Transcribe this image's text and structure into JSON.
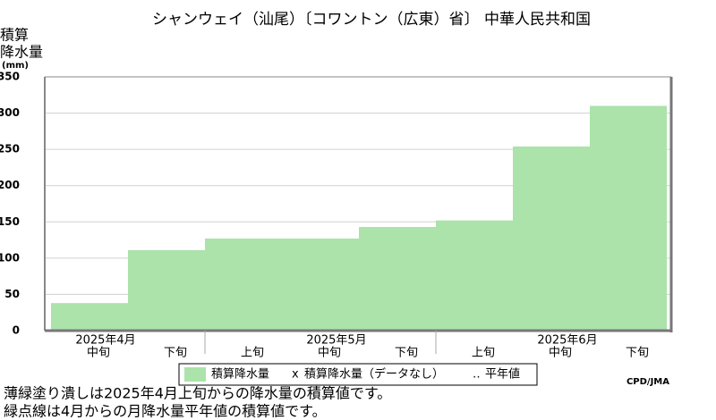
{
  "chart_data": {
    "type": "step-bar",
    "title": "シャンウェイ（汕尾）〔コワントン（広東）省〕 中華人民共和国",
    "y_label": [
      "積算",
      "降水量",
      "(mm)"
    ],
    "categories": [
      "中旬",
      "下旬",
      "上旬",
      "中旬",
      "下旬",
      "上旬",
      "中旬",
      "下旬"
    ],
    "month_labels": [
      "2025年4月",
      "2025年5月",
      "2025年6月"
    ],
    "series": [
      {
        "name": "積算降水量",
        "color": "#abe3aa",
        "values": [
          38,
          111,
          127,
          127,
          143,
          152,
          254,
          310
        ]
      }
    ],
    "legend_extra": [
      {
        "marker": "x",
        "name": "積算降水量（データなし）"
      },
      {
        "marker": "‥",
        "name": "平年値"
      }
    ],
    "ylim": [
      0,
      350
    ],
    "yticks": [
      0,
      50,
      100,
      150,
      200,
      250,
      300,
      350
    ],
    "grid": true,
    "credit": "CPD/JMA",
    "notes": [
      "薄緑塗り潰しは2025年4月上旬からの降水量の積算値です。",
      "緑点線は4月からの月降水量平年値の積算値です。"
    ]
  }
}
